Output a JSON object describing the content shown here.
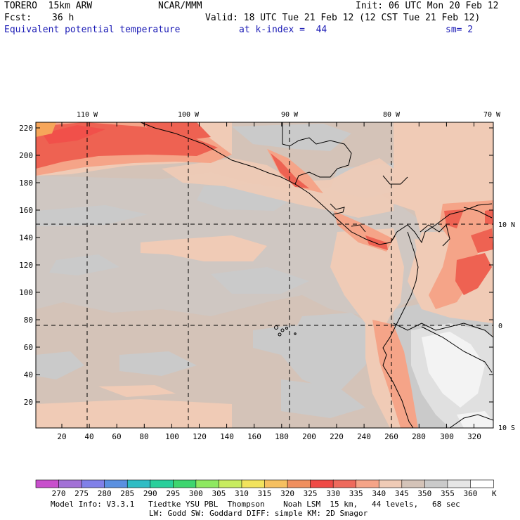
{
  "header": {
    "model_name": "TORERO  15km ARW",
    "center": "NCAR/MMM",
    "init": "Init: 06 UTC Mon 20 Feb 12",
    "fcst_label": "Fcst:",
    "fcst_hours": "36 h",
    "valid": "Valid: 18 UTC Tue 21 Feb 12 (12 CST Tue 21 Feb 12)",
    "field": "Equivalent potential temperature",
    "kindex": "at k-index =  44",
    "smoothing": "sm= 2"
  },
  "map": {
    "lon_labels": [
      "110 W",
      "100 W",
      "90 W",
      "80 W",
      "70 W"
    ],
    "lat_labels": [
      "10 N",
      "0",
      "10 S"
    ],
    "y_ticks": [
      "220",
      "200",
      "180",
      "160",
      "140",
      "120",
      "100",
      "80",
      "60",
      "40",
      "20"
    ],
    "x_ticks": [
      "20",
      "40",
      "60",
      "80",
      "100",
      "120",
      "140",
      "160",
      "180",
      "200",
      "220",
      "240",
      "260",
      "280",
      "300",
      "320"
    ],
    "colors": {
      "bg_345": "#d4c3b8",
      "c340": "#f0cbb6",
      "c335": "#f5a488",
      "c330": "#ee6252",
      "c325": "#f1504a",
      "c350": "#cacaca",
      "c355": "#e0e0e0",
      "c360": "#f3f3f3",
      "c320": "#f6a65a"
    }
  },
  "colorbar": {
    "labels": [
      "270",
      "275",
      "280",
      "285",
      "290",
      "295",
      "300",
      "305",
      "310",
      "315",
      "320",
      "325",
      "330",
      "335",
      "340",
      "345",
      "350",
      "355",
      "360"
    ],
    "unit": "K",
    "colors": [
      "#c84fcc",
      "#a271d6",
      "#8080e8",
      "#5a90e0",
      "#2fbcc4",
      "#29cf9b",
      "#3ed56f",
      "#8ee860",
      "#c8ec5f",
      "#f2e35d",
      "#f6c060",
      "#f08f5e",
      "#ef4a46",
      "#ee6a5d",
      "#f5a488",
      "#f0cbb6",
      "#d4c3b8",
      "#cacaca",
      "#e6e6e6",
      "#ffffff"
    ]
  },
  "footer": {
    "line1": "Model Info: V3.3.1   Tiedtke YSU PBL  Thompson    Noah LSM  15 km,   44 levels,   68 sec",
    "line2": "LW: Godd SW: Goddard DIFF: simple KM: 2D Smagor"
  }
}
